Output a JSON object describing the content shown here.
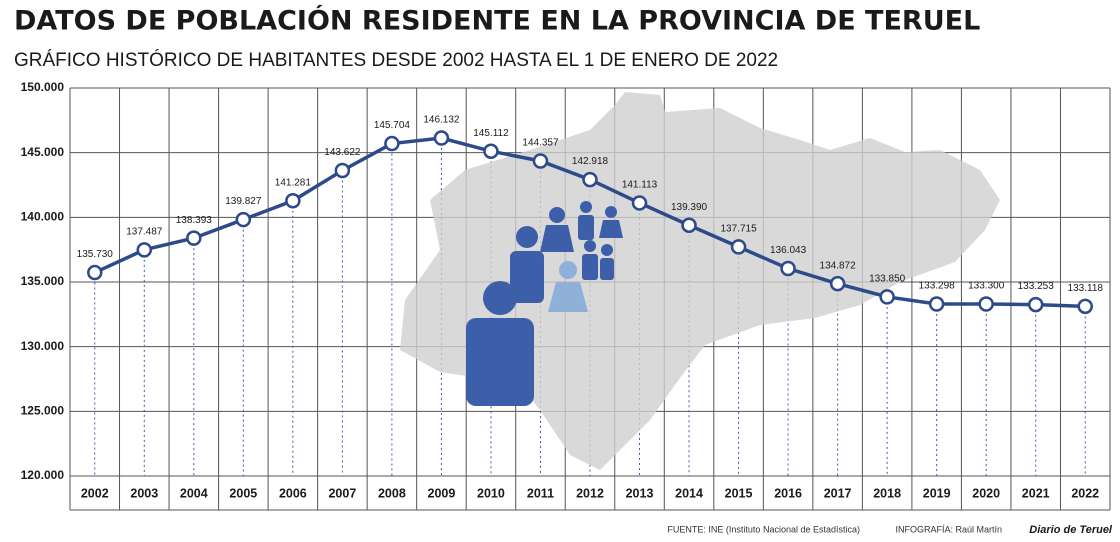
{
  "chart_data": {
    "type": "line",
    "title": "DATOS DE POBLACIÓN RESIDENTE EN LA PROVINCIA DE TERUEL",
    "subtitle": "GRÁFICO HISTÓRICO DE HABITANTES DESDE 2002 HASTA EL 1 DE ENERO DE 2022",
    "categories": [
      "2002",
      "2003",
      "2004",
      "2005",
      "2006",
      "2007",
      "2008",
      "2009",
      "2010",
      "2011",
      "2012",
      "2013",
      "2014",
      "2015",
      "2016",
      "2017",
      "2018",
      "2019",
      "2020",
      "2021",
      "2022"
    ],
    "values": [
      135730,
      137487,
      138393,
      139827,
      141281,
      143622,
      145704,
      146132,
      145112,
      144357,
      142918,
      141113,
      139390,
      137715,
      136043,
      134872,
      133850,
      133298,
      133300,
      133253,
      133118
    ],
    "value_labels": [
      "135.730",
      "137.487",
      "138.393",
      "139.827",
      "141.281",
      "143.622",
      "145.704",
      "146.132",
      "145.112",
      "144.357",
      "142.918",
      "141.113",
      "139.390",
      "137.715",
      "136.043",
      "134.872",
      "133.850",
      "133.298",
      "133.300",
      "133.253",
      "133.118"
    ],
    "color": "#2d4a8a",
    "ylim": [
      120000,
      150000
    ],
    "yticks": [
      {
        "value": 120000,
        "label": "120.000"
      },
      {
        "value": 125000,
        "label": "125.000"
      },
      {
        "value": 130000,
        "label": "130.000"
      },
      {
        "value": 135000,
        "label": "135.000"
      },
      {
        "value": 140000,
        "label": "140.000"
      },
      {
        "value": 145000,
        "label": "145.000"
      },
      {
        "value": 150000,
        "label": "150.000"
      }
    ],
    "grid": true,
    "source": "FUENTE: INE (Instituto Nacional de Estadística)",
    "credit": "INFOGRAFÍA: Raúl Martín",
    "brand": "Diario de Teruel"
  }
}
